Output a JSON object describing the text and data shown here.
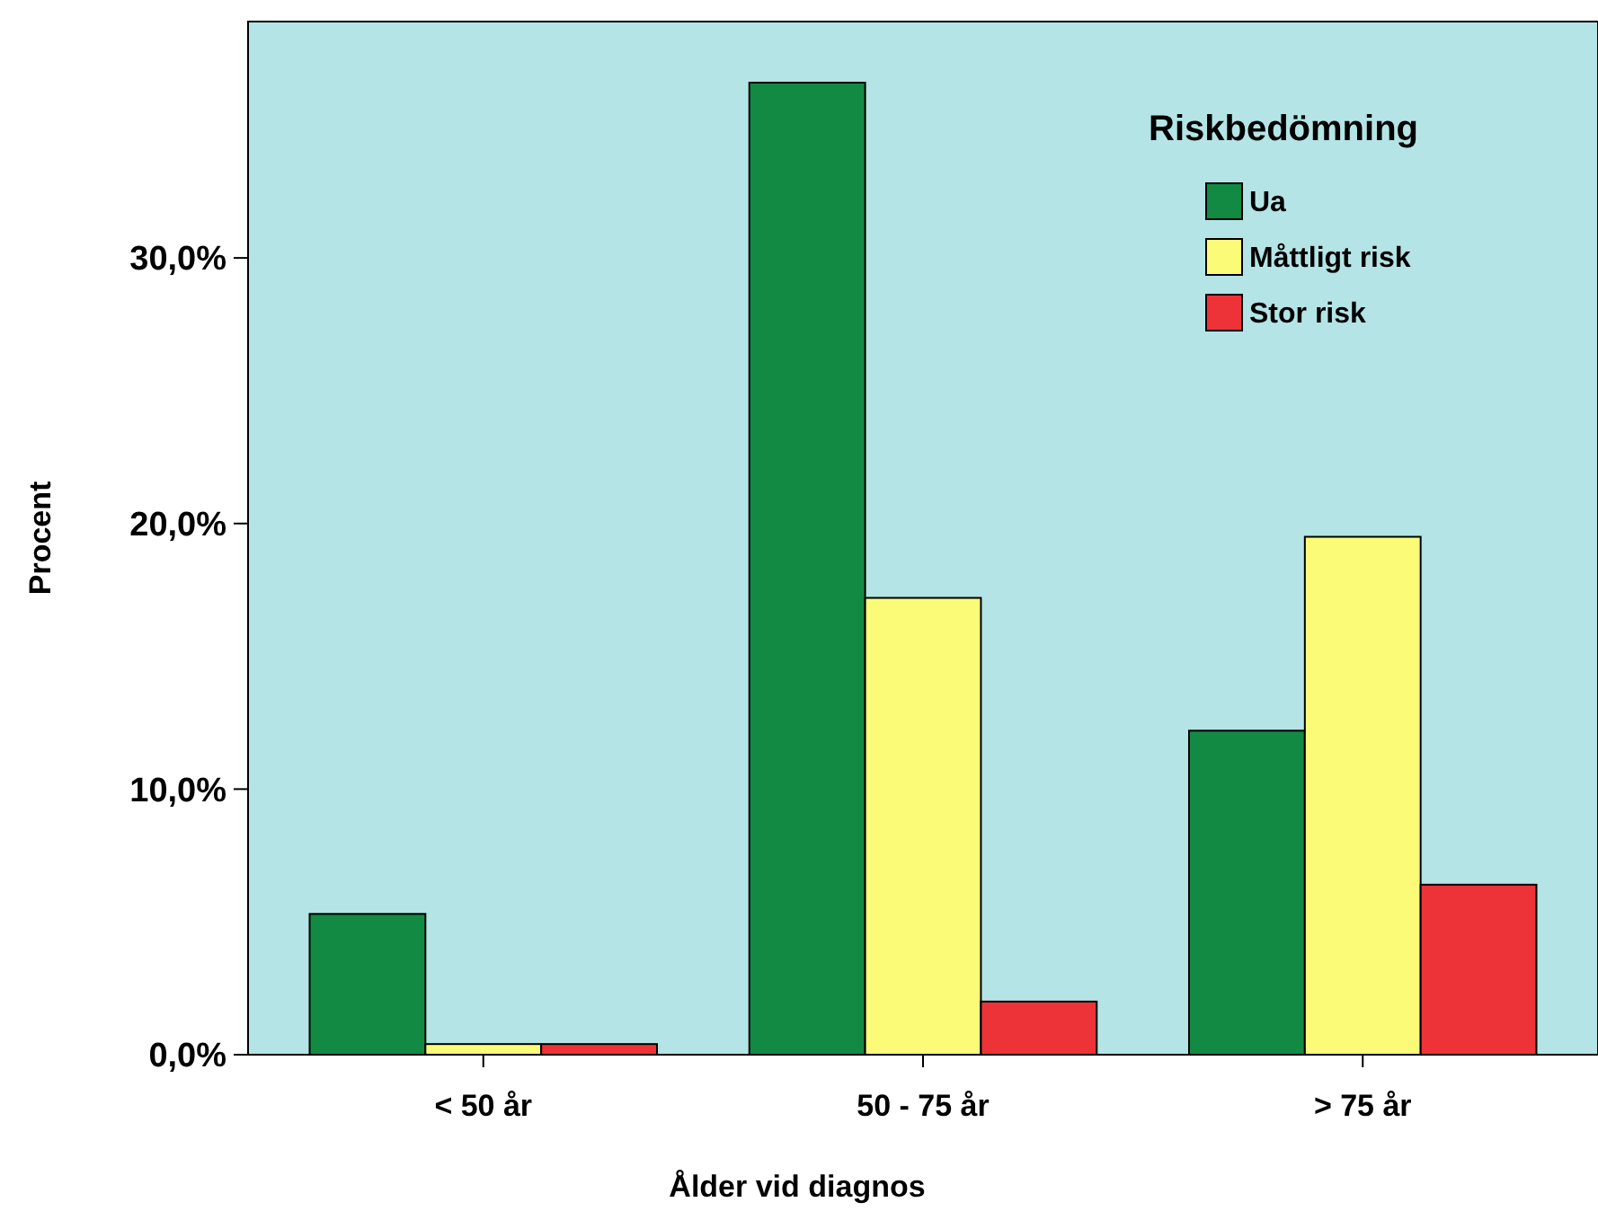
{
  "chart_data": {
    "type": "bar",
    "xlabel": "Ålder vid diagnos",
    "ylabel": "Procent",
    "legend_title": "Riskbedömning",
    "legend": "top right",
    "grid": false,
    "categories": [
      "< 50 år",
      "50 - 75 år",
      "> 75 år"
    ],
    "series": [
      {
        "name": "Ua",
        "color": "#138a43",
        "values": [
          5.3,
          36.6,
          12.2
        ]
      },
      {
        "name": "Måttligt risk",
        "color": "#fbfb78",
        "values": [
          0.4,
          17.2,
          19.5
        ]
      },
      {
        "name": "Stor risk",
        "color": "#ee3338",
        "values": [
          0.4,
          2.0,
          6.4
        ]
      }
    ],
    "ylim": [
      0,
      38.9
    ],
    "yticks": [
      {
        "value": 0,
        "label": "0,0%"
      },
      {
        "value": 10,
        "label": "10,0%"
      },
      {
        "value": 20,
        "label": "20,0%"
      },
      {
        "value": 30,
        "label": "30,0%"
      }
    ]
  }
}
